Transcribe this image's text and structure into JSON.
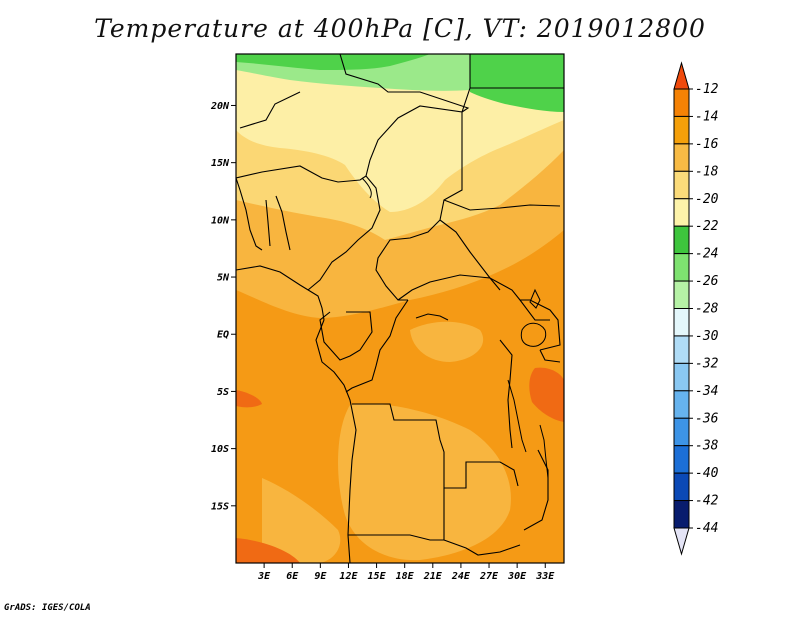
{
  "title": "Temperature at 400hPa [C], VT: 2019012800",
  "footer": "GrADS: IGES/COLA",
  "map": {
    "variable": "Temperature at 400hPa",
    "units": "C",
    "valid_time": "2019012800",
    "lon_range": [
      0,
      35
    ],
    "lat_range": [
      -20,
      24.5
    ],
    "lat_labels": [
      "20N",
      "15N",
      "10N",
      "5N",
      "EQ",
      "5S",
      "10S",
      "15S"
    ],
    "lon_labels": [
      "3E",
      "6E",
      "9E",
      "12E",
      "15E",
      "18E",
      "21E",
      "24E",
      "27E",
      "30E",
      "33E"
    ]
  },
  "colorbar": {
    "labels": [
      "-12",
      "-14",
      "-16",
      "-18",
      "-20",
      "-22",
      "-24",
      "-26",
      "-28",
      "-30",
      "-32",
      "-34",
      "-36",
      "-38",
      "-40",
      "-42",
      "-44"
    ],
    "colors": [
      "#f04a0c",
      "#f58205",
      "#f5a00a",
      "#f8bb45",
      "#fbdb7a",
      "#fdf3aa",
      "#3ec53d",
      "#7ee270",
      "#b6f2a6",
      "#e4f7fb",
      "#b0dcf6",
      "#8ac8f2",
      "#66b3ee",
      "#3d94e6",
      "#1c6fd6",
      "#0b49b6",
      "#081c6e",
      "#e4e4f6"
    ]
  },
  "colors": {
    "band_orange": "#f59a15",
    "band_light_orange": "#f8b53f",
    "band_yellow": "#fbd774",
    "band_pale": "#fdefa6",
    "band_green": "#4fd24a",
    "band_light_green": "#9be98a",
    "band_red": "#f06a14"
  }
}
